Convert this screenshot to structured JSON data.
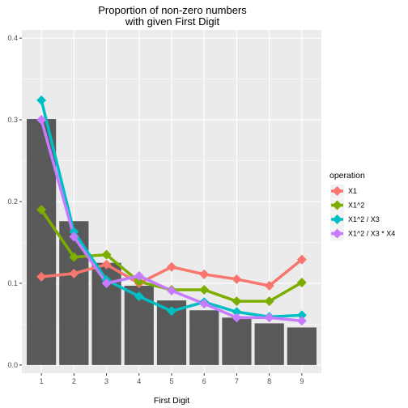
{
  "chart_data": {
    "type": "line",
    "title": "Proportion of non-zero numbers\nwith given First Digit",
    "xlabel": "First Digit",
    "ylabel": "",
    "categories": [
      "1",
      "2",
      "3",
      "4",
      "5",
      "6",
      "7",
      "8",
      "9"
    ],
    "x": [
      1,
      2,
      3,
      4,
      5,
      6,
      7,
      8,
      9
    ],
    "xlim": [
      0.4,
      9.6
    ],
    "ylim": [
      -0.01,
      0.41
    ],
    "yticks": [
      0.0,
      0.1,
      0.2,
      0.3,
      0.4
    ],
    "ytick_labels": [
      "0.0",
      "0.1",
      "0.2",
      "0.3",
      "0.4"
    ],
    "grid": true,
    "bars": {
      "values": [
        0.301,
        0.176,
        0.125,
        0.097,
        0.079,
        0.067,
        0.058,
        0.051,
        0.046
      ],
      "color": "#595959"
    },
    "legend": {
      "title": "operation",
      "position": "right"
    },
    "series": [
      {
        "name": "X1",
        "color": "#F8766D",
        "values": [
          0.108,
          0.112,
          0.123,
          0.1,
          0.12,
          0.111,
          0.105,
          0.097,
          0.129
        ]
      },
      {
        "name": "X1^2",
        "color": "#7CAE00",
        "values": [
          0.19,
          0.132,
          0.135,
          0.102,
          0.092,
          0.092,
          0.078,
          0.078,
          0.101
        ]
      },
      {
        "name": "X1^2 / X3",
        "color": "#00BFC4",
        "values": [
          0.324,
          0.163,
          0.104,
          0.084,
          0.066,
          0.077,
          0.065,
          0.059,
          0.061
        ]
      },
      {
        "name": "X1^2 / X3 * X4",
        "color": "#C77CFF",
        "values": [
          0.3,
          0.157,
          0.1,
          0.109,
          0.091,
          0.075,
          0.058,
          0.058,
          0.054
        ]
      }
    ]
  }
}
